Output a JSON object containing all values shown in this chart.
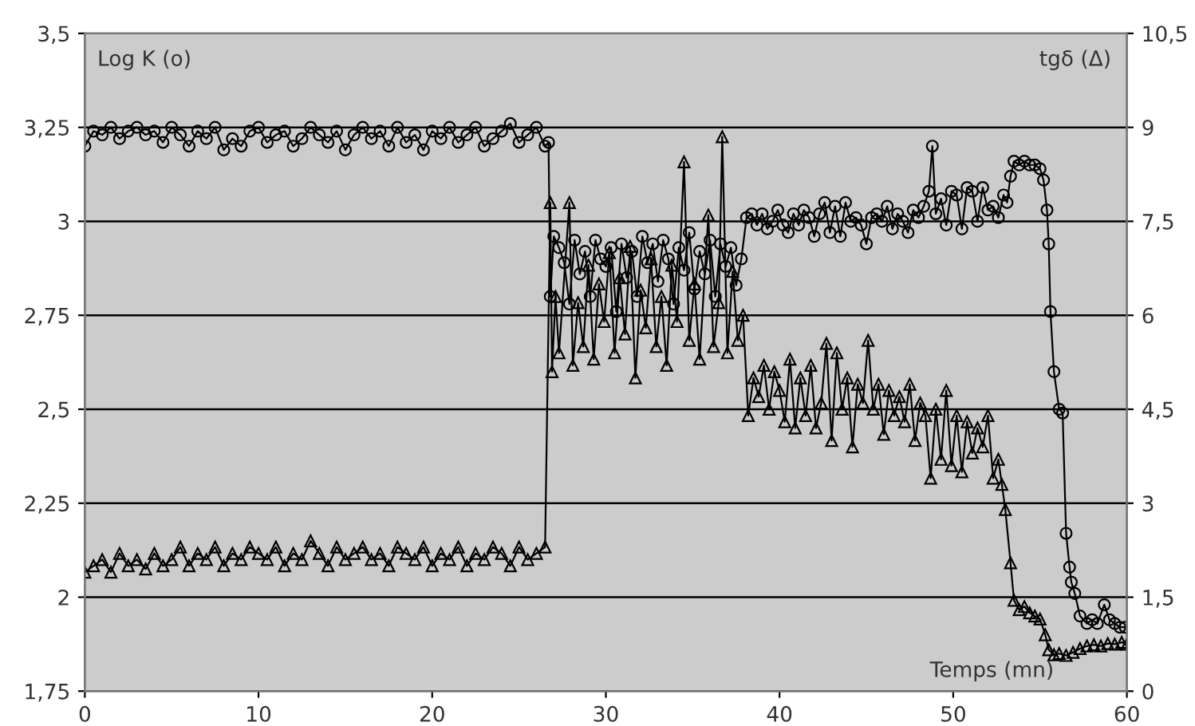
{
  "chart_data": {
    "type": "line",
    "xlabel": "Temps (mn)",
    "ylabel": "Log K (o)",
    "y2label": "tgδ (Δ)",
    "xlim": [
      0,
      60
    ],
    "xticks": [
      0,
      10,
      20,
      30,
      40,
      50,
      60
    ],
    "ylim": [
      1.75,
      3.5
    ],
    "yticks": [
      {
        "value": 1.75,
        "label": "1,75"
      },
      2,
      {
        "value": 2.25,
        "label": "2,25"
      },
      {
        "value": 2.5,
        "label": "2,5"
      },
      {
        "value": 2.75,
        "label": "2,75"
      },
      3,
      {
        "value": 3.25,
        "label": "3,25"
      },
      {
        "value": 3.5,
        "label": "3,5"
      }
    ],
    "y2lim": [
      0,
      10.5
    ],
    "y2ticks": [
      0,
      {
        "value": 1.5,
        "label": "1,5"
      },
      3,
      {
        "value": 4.5,
        "label": "4,5"
      },
      6,
      {
        "value": 7.5,
        "label": "7,5"
      },
      9,
      {
        "value": 10.5,
        "label": "10,5"
      }
    ],
    "grid": "y",
    "line_style": "solid",
    "series": [
      {
        "color": "#000000",
        "marker": "circle",
        "x": [
          0,
          0.5,
          1,
          1.5,
          2,
          2.5,
          3,
          3.5,
          4,
          4.5,
          5,
          5.5,
          6,
          6.5,
          7,
          7.5,
          8,
          8.5,
          9,
          9.5,
          10,
          10.5,
          11,
          11.5,
          12,
          12.5,
          13,
          13.5,
          14,
          14.5,
          15,
          15.5,
          16,
          16.5,
          17,
          17.5,
          18,
          18.5,
          19,
          19.5,
          20,
          20.5,
          21,
          21.5,
          22,
          22.5,
          23,
          23.5,
          24,
          24.5,
          25,
          25.5,
          26,
          26.5,
          26.7,
          26.8,
          27,
          27.3,
          27.6,
          27.9,
          28.2,
          28.5,
          28.8,
          29.1,
          29.4,
          29.7,
          30,
          30.3,
          30.6,
          30.9,
          31.2,
          31.5,
          31.8,
          32.1,
          32.4,
          32.7,
          33,
          33.3,
          33.6,
          33.9,
          34.2,
          34.5,
          34.8,
          35.1,
          35.4,
          35.7,
          36,
          36.3,
          36.6,
          36.9,
          37.2,
          37.5,
          37.8,
          38.1,
          38.4,
          38.7,
          39,
          39.3,
          39.6,
          39.9,
          40.2,
          40.5,
          40.8,
          41.1,
          41.4,
          41.7,
          42,
          42.3,
          42.6,
          42.9,
          43.2,
          43.5,
          43.8,
          44.1,
          44.4,
          44.7,
          45,
          45.3,
          45.6,
          45.9,
          46.2,
          46.5,
          46.8,
          47.1,
          47.4,
          47.7,
          48,
          48.3,
          48.6,
          48.8,
          49,
          49.3,
          49.6,
          49.9,
          50.2,
          50.5,
          50.8,
          51.1,
          51.4,
          51.7,
          52,
          52.3,
          52.6,
          52.9,
          53.1,
          53.3,
          53.5,
          53.8,
          54.1,
          54.4,
          54.7,
          55,
          55.2,
          55.4,
          55.5,
          55.6,
          55.8,
          56.1,
          56.3,
          56.5,
          56.7,
          56.8,
          57,
          57.3,
          57.7,
          58,
          58.3,
          58.7,
          59,
          59.3,
          59.6,
          59.9
        ],
        "values": [
          3.2,
          3.24,
          3.23,
          3.25,
          3.22,
          3.24,
          3.25,
          3.23,
          3.24,
          3.21,
          3.25,
          3.23,
          3.2,
          3.24,
          3.22,
          3.25,
          3.19,
          3.22,
          3.2,
          3.24,
          3.25,
          3.21,
          3.23,
          3.24,
          3.2,
          3.22,
          3.25,
          3.23,
          3.21,
          3.24,
          3.19,
          3.23,
          3.25,
          3.22,
          3.24,
          3.2,
          3.25,
          3.21,
          3.23,
          3.19,
          3.24,
          3.22,
          3.25,
          3.21,
          3.23,
          3.25,
          3.2,
          3.22,
          3.24,
          3.26,
          3.21,
          3.23,
          3.25,
          3.2,
          3.21,
          2.8,
          2.96,
          2.93,
          2.89,
          2.78,
          2.95,
          2.86,
          2.92,
          2.8,
          2.95,
          2.9,
          2.88,
          2.93,
          2.76,
          2.94,
          2.85,
          2.92,
          2.8,
          2.96,
          2.89,
          2.94,
          2.84,
          2.95,
          2.9,
          2.78,
          2.93,
          2.87,
          2.97,
          2.82,
          2.92,
          2.86,
          2.95,
          2.8,
          2.94,
          2.88,
          2.93,
          2.83,
          2.9,
          3.01,
          3.02,
          2.99,
          3.02,
          2.98,
          3.0,
          3.03,
          2.99,
          2.97,
          3.02,
          2.99,
          3.03,
          3.01,
          2.96,
          3.02,
          3.05,
          2.97,
          3.04,
          2.96,
          3.05,
          3.0,
          3.01,
          2.99,
          2.94,
          3.01,
          3.02,
          3.0,
          3.04,
          2.98,
          3.02,
          3.0,
          2.97,
          3.03,
          3.01,
          3.04,
          3.08,
          3.2,
          3.02,
          3.06,
          2.99,
          3.08,
          3.07,
          2.98,
          3.09,
          3.08,
          3.0,
          3.09,
          3.03,
          3.04,
          3.01,
          3.07,
          3.05,
          3.12,
          3.16,
          3.15,
          3.16,
          3.15,
          3.15,
          3.14,
          3.11,
          3.03,
          2.94,
          2.76,
          2.6,
          2.5,
          2.49,
          2.17,
          2.08,
          2.04,
          2.01,
          1.95,
          1.93,
          1.94,
          1.93,
          1.98,
          1.94,
          1.93,
          1.92,
          1.92
        ]
      },
      {
        "color": "#000000",
        "marker": "triangle",
        "axis": "y2",
        "x": [
          0,
          0.5,
          1,
          1.5,
          2,
          2.5,
          3,
          3.5,
          4,
          4.5,
          5,
          5.5,
          6,
          6.5,
          7,
          7.5,
          8,
          8.5,
          9,
          9.5,
          10,
          10.5,
          11,
          11.5,
          12,
          12.5,
          13,
          13.5,
          14,
          14.5,
          15,
          15.5,
          16,
          16.5,
          17,
          17.5,
          18,
          18.5,
          19,
          19.5,
          20,
          20.5,
          21,
          21.5,
          22,
          22.5,
          23,
          23.5,
          24,
          24.5,
          25,
          25.5,
          26,
          26.5,
          26.8,
          26.9,
          27.1,
          27.3,
          27.9,
          28.1,
          28.4,
          28.7,
          29,
          29.3,
          29.6,
          29.9,
          30.2,
          30.5,
          30.8,
          31.1,
          31.4,
          31.7,
          32,
          32.3,
          32.6,
          32.9,
          33.2,
          33.5,
          33.8,
          34.1,
          34.5,
          34.8,
          35.1,
          35.4,
          35.9,
          36.2,
          36.5,
          36.7,
          37,
          37.3,
          37.6,
          37.9,
          38.2,
          38.5,
          38.8,
          39.1,
          39.4,
          39.7,
          40,
          40.3,
          40.6,
          40.9,
          41.2,
          41.5,
          41.8,
          42.1,
          42.4,
          42.7,
          43,
          43.3,
          43.6,
          43.9,
          44.2,
          44.5,
          44.8,
          45.1,
          45.4,
          45.7,
          46,
          46.3,
          46.6,
          46.9,
          47.2,
          47.5,
          47.8,
          48.1,
          48.4,
          48.7,
          49,
          49.3,
          49.6,
          49.9,
          50.2,
          50.5,
          50.8,
          51.1,
          51.4,
          51.7,
          52,
          52.3,
          52.6,
          52.8,
          53,
          53.3,
          53.5,
          53.8,
          54.1,
          54.4,
          54.7,
          55,
          55.3,
          55.5,
          55.8,
          56.1,
          56.5,
          56.9,
          57.3,
          57.7,
          58.1,
          58.5,
          58.9,
          59.3,
          59.7,
          60
        ],
        "values": [
          1.9,
          2.0,
          2.1,
          1.9,
          2.2,
          2.0,
          2.1,
          1.95,
          2.2,
          2.0,
          2.1,
          2.3,
          2.0,
          2.2,
          2.1,
          2.3,
          2.0,
          2.2,
          2.1,
          2.3,
          2.2,
          2.1,
          2.3,
          2.0,
          2.2,
          2.1,
          2.4,
          2.2,
          2.0,
          2.3,
          2.1,
          2.2,
          2.3,
          2.1,
          2.2,
          2.0,
          2.3,
          2.2,
          2.1,
          2.3,
          2.0,
          2.2,
          2.1,
          2.3,
          2.0,
          2.2,
          2.1,
          2.3,
          2.2,
          2.0,
          2.3,
          2.1,
          2.2,
          2.3,
          7.8,
          5.1,
          6.3,
          5.4,
          7.8,
          5.2,
          6.2,
          5.5,
          6.8,
          5.3,
          6.5,
          5.9,
          7.0,
          5.4,
          6.6,
          5.7,
          7.1,
          5.0,
          6.4,
          5.8,
          6.9,
          5.5,
          6.3,
          5.2,
          6.8,
          5.9,
          8.45,
          5.6,
          6.5,
          5.3,
          7.6,
          5.5,
          6.2,
          8.85,
          5.4,
          6.7,
          5.6,
          6.0,
          4.4,
          5.0,
          4.7,
          5.2,
          4.5,
          5.1,
          4.8,
          4.3,
          5.3,
          4.2,
          5.0,
          4.4,
          5.2,
          4.2,
          4.6,
          5.55,
          4.0,
          5.4,
          4.5,
          5.0,
          3.9,
          4.9,
          4.6,
          5.6,
          4.5,
          4.9,
          4.1,
          4.8,
          4.4,
          4.7,
          4.3,
          4.9,
          4.0,
          4.6,
          4.4,
          3.4,
          4.5,
          3.7,
          4.8,
          3.6,
          4.4,
          3.5,
          4.3,
          3.8,
          4.2,
          3.9,
          4.4,
          3.4,
          3.7,
          3.3,
          2.9,
          2.05,
          1.45,
          1.3,
          1.35,
          1.25,
          1.2,
          1.15,
          0.9,
          0.66,
          0.58,
          0.6,
          0.57,
          0.62,
          0.68,
          0.72,
          0.74,
          0.72,
          0.76,
          0.75,
          0.78,
          0.75
        ]
      }
    ]
  }
}
